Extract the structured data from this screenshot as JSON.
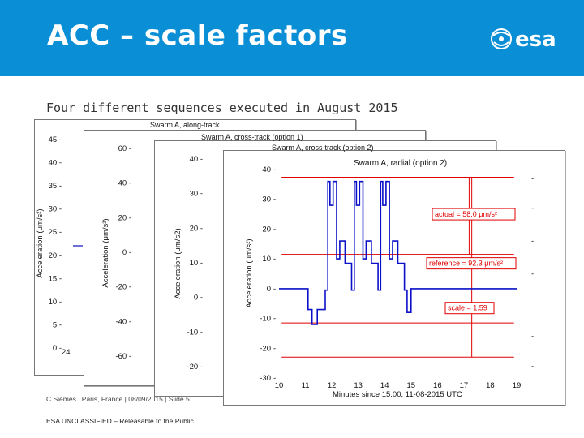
{
  "header": {
    "title": "ACC – scale factors",
    "logo_text": "esa",
    "background": "#0a8fd6"
  },
  "subtitle": "Four different sequences executed in August 2015",
  "footer": {
    "line1": "C Siemes | Paris, France | 08/09/2015 | Slide 5",
    "line2": "ESA UNCLASSIFIED – Releasable to the Public"
  },
  "colors": {
    "signal": "#0b10c8",
    "annotation": "#e00000"
  },
  "chart_data": [
    {
      "type": "line",
      "title": "Swarm A, along-track",
      "ylabel": "Acceleration (μm/s²)",
      "yticks": [
        "45",
        "40",
        "35",
        "30",
        "25",
        "20",
        "15",
        "10",
        "5",
        "0"
      ],
      "xticks": [
        "24"
      ],
      "ylim": [
        0,
        45
      ]
    },
    {
      "type": "line",
      "title": "Swarm A, cross-track (option 1)",
      "ylabel": "Acceleration (μm/s²)",
      "yticks": [
        "60",
        "40",
        "20",
        "0",
        "-20",
        "-40",
        "-60"
      ],
      "ylim": [
        -60,
        60
      ]
    },
    {
      "type": "line",
      "title": "Swarm A, cross-track (option 2)",
      "ylabel": "Acceleration (μm/s2)",
      "yticks": [
        "40",
        "30",
        "20",
        "10",
        "0",
        "-10",
        "-20"
      ],
      "ylim": [
        -20,
        40
      ]
    },
    {
      "type": "line",
      "title": "Swarm A, radial (option 2)",
      "xlabel": "Minutes since 15:00, 11-08-2015 UTC",
      "ylabel": "Acceleration (μm/s²)",
      "xlim": [
        10,
        19
      ],
      "ylim": [
        -30,
        40
      ],
      "xticks": [
        "10",
        "11",
        "12",
        "13",
        "14",
        "15",
        "16",
        "17",
        "18",
        "19"
      ],
      "yticks": [
        "40",
        "30",
        "20",
        "10",
        "0",
        "-10",
        "-20",
        "-30"
      ],
      "reference_lines_y": [
        37.4,
        11.5,
        -11.5,
        -23
      ],
      "annotations": {
        "actual": "actual = 58.0 μm/s²",
        "reference": "reference = 92.3 μm/s²",
        "scale": "scale = 1.59"
      },
      "series": [
        {
          "x": [
            10.0,
            11.1,
            11.1,
            11.25,
            11.25,
            11.45,
            11.45,
            11.75,
            11.75,
            11.85,
            11.85,
            11.93,
            11.93,
            12.05,
            12.05,
            12.18,
            12.18,
            12.3,
            12.3,
            12.5,
            12.5,
            12.75,
            12.75,
            12.85,
            12.85,
            12.93,
            12.93,
            13.05,
            13.05,
            13.18,
            13.18,
            13.3,
            13.3,
            13.5,
            13.5,
            13.75,
            13.75,
            13.85,
            13.85,
            13.93,
            13.93,
            14.05,
            14.05,
            14.18,
            14.18,
            14.3,
            14.3,
            14.5,
            14.5,
            14.75,
            14.75,
            14.85,
            14.85,
            15.0,
            15.0,
            19.0
          ],
          "y": [
            0,
            0,
            -7,
            -7,
            -12,
            -12,
            -7,
            -7,
            -0.5,
            -0.5,
            36,
            36,
            28,
            28,
            36,
            36,
            10,
            10,
            16,
            16,
            8.5,
            8.5,
            -0.5,
            -0.5,
            36,
            36,
            28,
            28,
            36,
            36,
            10,
            10,
            16,
            16,
            8.5,
            8.5,
            -0.5,
            -0.5,
            36,
            36,
            28,
            28,
            36,
            36,
            10,
            10,
            16,
            16,
            8.5,
            8.5,
            -0.5,
            -0.5,
            -8,
            -8,
            0,
            0
          ]
        }
      ]
    }
  ]
}
